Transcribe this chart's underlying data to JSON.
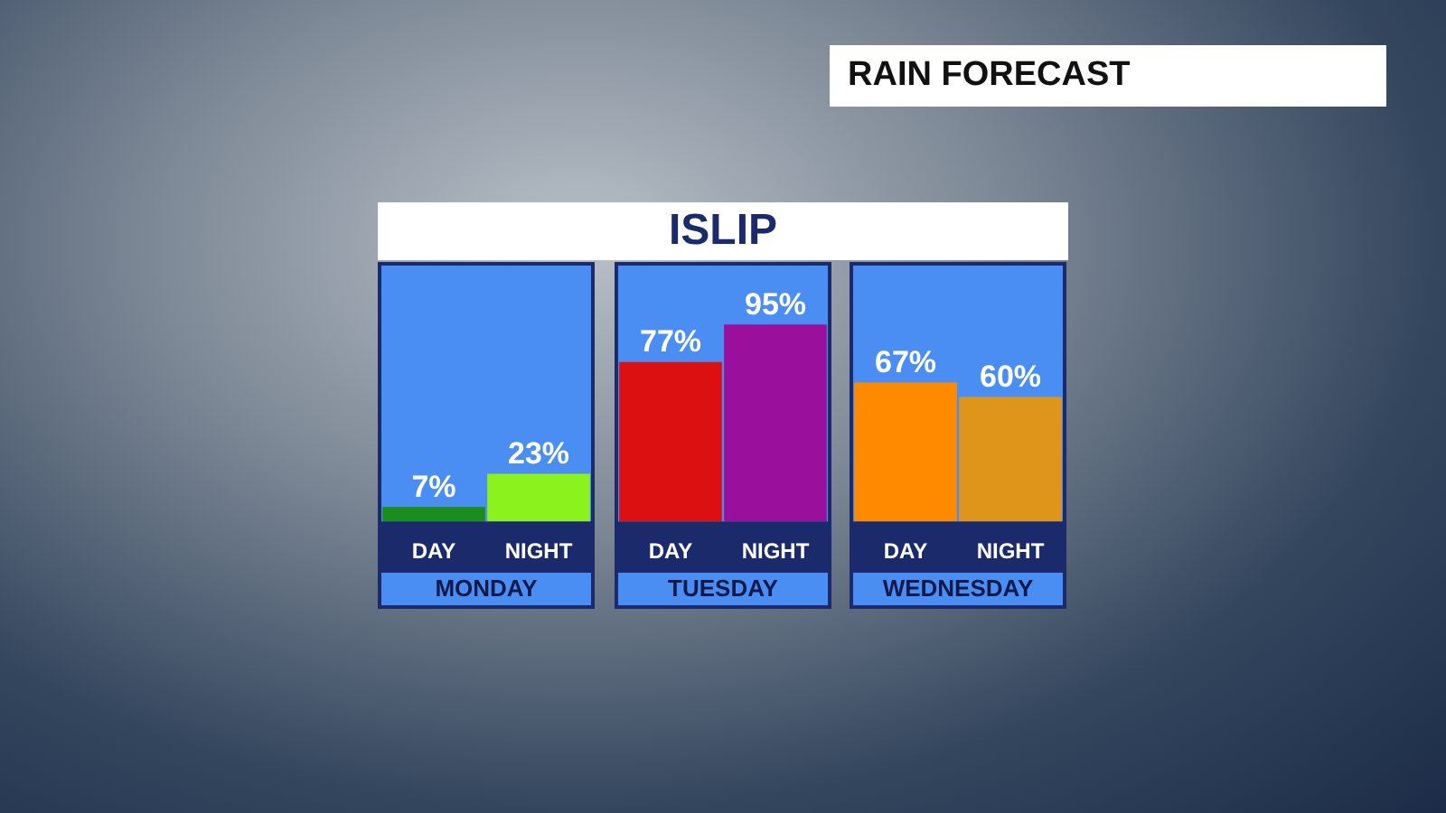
{
  "chart_data": [
    {
      "type": "other",
      "title": "RAIN FORECAST",
      "subtitle": "ISLIP"
    },
    {
      "type": "bar",
      "xlabel": "MONDAY",
      "categories": [
        "DAY",
        "NIGHT"
      ],
      "values": [
        7,
        23
      ],
      "colors": [
        "#1c8c1c",
        "#8cf21e"
      ],
      "value_labels": [
        "7%",
        "23%"
      ]
    },
    {
      "type": "bar",
      "xlabel": "TUESDAY",
      "categories": [
        "DAY",
        "NIGHT"
      ],
      "values": [
        77,
        95
      ],
      "colors": [
        "#dc1010",
        "#9a0f9c"
      ],
      "value_labels": [
        "77%",
        "95%"
      ]
    },
    {
      "type": "bar",
      "xlabel": "WEDNESDAY",
      "categories": [
        "DAY",
        "NIGHT"
      ],
      "values": [
        67,
        60
      ],
      "colors": [
        "#ff8a00",
        "#df951a"
      ],
      "value_labels": [
        "67%",
        "60%"
      ]
    }
  ]
}
